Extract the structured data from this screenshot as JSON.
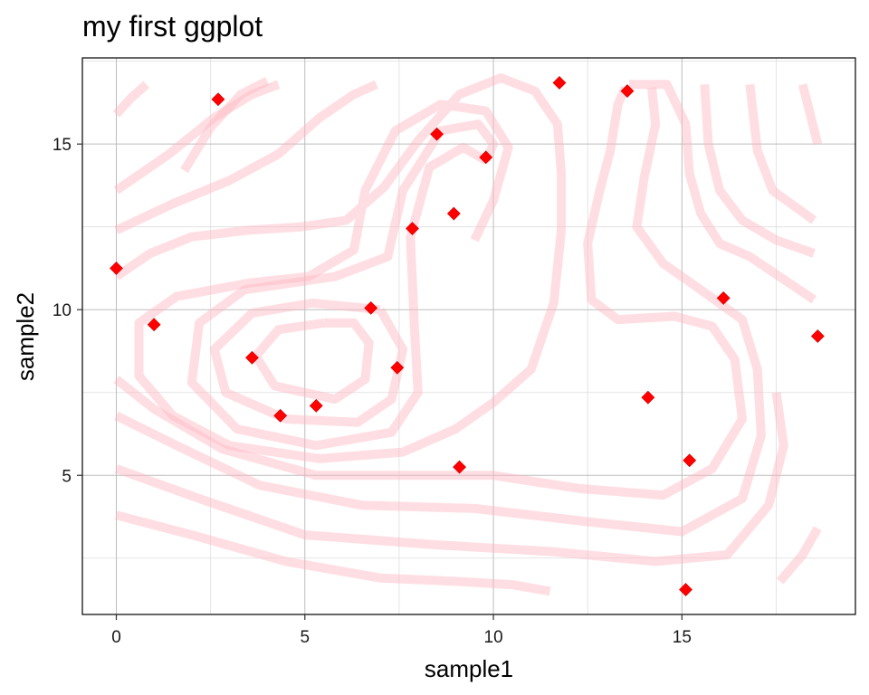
{
  "chart_data": {
    "type": "scatter",
    "title": "my first ggplot",
    "xlabel": "sample1",
    "ylabel": "sample2",
    "xlim": [
      -0.9,
      19.6
    ],
    "ylim": [
      0.8,
      17.6
    ],
    "x_ticks": [
      0,
      5,
      10,
      15
    ],
    "y_ticks": [
      5,
      10,
      15
    ],
    "x_minor": [
      2.5,
      7.5,
      12.5,
      17.5
    ],
    "y_minor": [
      2.5,
      7.5,
      12.5,
      17.5
    ],
    "grid": true,
    "point_shape": "diamond",
    "point_color": "#ff0000",
    "contour_color": "#ffb6c1",
    "points": [
      {
        "x": 0.0,
        "y": 11.25
      },
      {
        "x": 1.0,
        "y": 9.55
      },
      {
        "x": 2.7,
        "y": 16.35
      },
      {
        "x": 3.6,
        "y": 8.55
      },
      {
        "x": 4.35,
        "y": 6.8
      },
      {
        "x": 5.3,
        "y": 7.1
      },
      {
        "x": 6.75,
        "y": 10.05
      },
      {
        "x": 7.45,
        "y": 8.25
      },
      {
        "x": 7.85,
        "y": 12.45
      },
      {
        "x": 8.5,
        "y": 15.3
      },
      {
        "x": 8.95,
        "y": 12.9
      },
      {
        "x": 9.1,
        "y": 5.25
      },
      {
        "x": 9.8,
        "y": 14.6
      },
      {
        "x": 11.75,
        "y": 16.85
      },
      {
        "x": 13.55,
        "y": 16.6
      },
      {
        "x": 14.1,
        "y": 7.35
      },
      {
        "x": 15.1,
        "y": 1.55
      },
      {
        "x": 15.2,
        "y": 5.45
      },
      {
        "x": 16.1,
        "y": 10.35
      },
      {
        "x": 18.6,
        "y": 9.2
      }
    ],
    "contours": [
      [
        [
          5.5,
          9.6
        ],
        [
          4.3,
          9.4
        ],
        [
          3.7,
          8.6
        ],
        [
          4.2,
          7.7
        ],
        [
          5.8,
          7.3
        ],
        [
          6.6,
          7.9
        ],
        [
          6.7,
          9.0
        ],
        [
          6.3,
          9.6
        ],
        [
          5.5,
          9.6
        ]
      ],
      [
        [
          7.0,
          10.0
        ],
        [
          5.2,
          10.2
        ],
        [
          3.6,
          9.9
        ],
        [
          2.6,
          8.8
        ],
        [
          2.9,
          7.5
        ],
        [
          4.5,
          6.7
        ],
        [
          6.4,
          6.6
        ],
        [
          7.3,
          7.3
        ],
        [
          7.6,
          8.8
        ],
        [
          7.0,
          10.0
        ]
      ],
      [
        [
          9.8,
          14.5
        ],
        [
          9.2,
          14.9
        ],
        [
          8.3,
          14.3
        ],
        [
          7.8,
          12.2
        ],
        [
          7.9,
          9.6
        ],
        [
          8.0,
          7.5
        ],
        [
          7.3,
          6.3
        ],
        [
          5.3,
          5.9
        ],
        [
          3.2,
          6.4
        ],
        [
          2.0,
          7.8
        ],
        [
          2.2,
          9.6
        ],
        [
          3.4,
          10.6
        ],
        [
          5.8,
          11.0
        ],
        [
          7.2,
          11.6
        ],
        [
          7.6,
          13.6
        ],
        [
          8.6,
          15.4
        ],
        [
          9.6,
          15.6
        ],
        [
          10.0,
          15.0
        ],
        [
          9.8,
          14.5
        ]
      ],
      [
        [
          0.0,
          7.9
        ],
        [
          1.0,
          7.0
        ],
        [
          2.8,
          5.8
        ],
        [
          5.3,
          5.0
        ],
        [
          7.5,
          5.0
        ],
        [
          10.0,
          5.0
        ],
        [
          12.3,
          4.6
        ],
        [
          14.5,
          4.4
        ],
        [
          15.8,
          5.2
        ],
        [
          16.6,
          6.7
        ],
        [
          16.4,
          8.5
        ],
        [
          15.8,
          9.5
        ],
        [
          14.8,
          9.8
        ],
        [
          13.3,
          9.7
        ],
        [
          12.6,
          10.3
        ],
        [
          12.5,
          12.0
        ],
        [
          12.8,
          13.5
        ],
        [
          13.1,
          14.8
        ],
        [
          13.3,
          16.2
        ],
        [
          13.5,
          16.7
        ]
      ],
      [
        [
          0.0,
          6.8
        ],
        [
          1.6,
          5.9
        ],
        [
          3.8,
          4.7
        ],
        [
          6.5,
          4.1
        ],
        [
          9.5,
          4.0
        ],
        [
          12.5,
          3.6
        ],
        [
          15.0,
          3.3
        ],
        [
          16.6,
          4.3
        ],
        [
          17.1,
          6.2
        ],
        [
          17.0,
          8.2
        ],
        [
          16.6,
          9.7
        ],
        [
          15.5,
          10.6
        ],
        [
          14.5,
          11.4
        ],
        [
          13.8,
          12.5
        ],
        [
          14.0,
          14.0
        ],
        [
          14.3,
          15.6
        ],
        [
          14.2,
          16.7
        ]
      ],
      [
        [
          0.0,
          5.2
        ],
        [
          2.2,
          4.3
        ],
        [
          5.0,
          3.2
        ],
        [
          8.5,
          2.9
        ],
        [
          11.5,
          2.7
        ],
        [
          14.3,
          2.4
        ],
        [
          16.2,
          2.6
        ],
        [
          17.3,
          4.1
        ],
        [
          17.7,
          5.9
        ],
        [
          17.5,
          7.5
        ]
      ],
      [
        [
          0.0,
          3.8
        ],
        [
          2.0,
          3.2
        ],
        [
          4.5,
          2.4
        ],
        [
          7.0,
          1.9
        ],
        [
          9.0,
          1.8
        ],
        [
          10.5,
          1.7
        ],
        [
          11.5,
          1.5
        ]
      ],
      [
        [
          0.0,
          11.0
        ],
        [
          0.9,
          11.7
        ],
        [
          2.0,
          12.2
        ],
        [
          3.5,
          12.4
        ],
        [
          4.9,
          12.5
        ],
        [
          6.1,
          12.7
        ],
        [
          7.1,
          13.7
        ],
        [
          8.0,
          15.1
        ],
        [
          9.1,
          16.5
        ],
        [
          10.2,
          17.0
        ],
        [
          11.1,
          16.6
        ],
        [
          11.7,
          15.6
        ],
        [
          11.8,
          14.1
        ],
        [
          11.8,
          12.4
        ],
        [
          11.6,
          10.2
        ],
        [
          11.0,
          8.2
        ],
        [
          10.0,
          7.2
        ],
        [
          9.0,
          6.4
        ],
        [
          7.6,
          5.7
        ],
        [
          5.4,
          5.5
        ],
        [
          3.0,
          5.9
        ],
        [
          1.5,
          6.8
        ],
        [
          0.6,
          8.0
        ],
        [
          0.6,
          9.6
        ],
        [
          1.6,
          10.4
        ],
        [
          3.5,
          10.8
        ],
        [
          5.1,
          11.0
        ],
        [
          6.3,
          11.8
        ],
        [
          6.6,
          13.6
        ],
        [
          7.4,
          15.4
        ],
        [
          8.6,
          16.2
        ],
        [
          9.8,
          16.0
        ],
        [
          10.4,
          14.9
        ],
        [
          10.0,
          13.3
        ],
        [
          9.5,
          12.1
        ]
      ],
      [
        [
          0.0,
          12.4
        ],
        [
          1.5,
          13.2
        ],
        [
          3.0,
          13.9
        ],
        [
          4.3,
          14.7
        ],
        [
          5.4,
          15.8
        ],
        [
          6.3,
          16.5
        ],
        [
          6.9,
          16.8
        ]
      ],
      [
        [
          0.0,
          13.6
        ],
        [
          1.4,
          14.7
        ],
        [
          2.6,
          15.8
        ],
        [
          3.6,
          16.5
        ],
        [
          4.3,
          16.8
        ]
      ],
      [
        [
          0.0,
          15.9
        ],
        [
          0.4,
          16.4
        ],
        [
          0.8,
          16.8
        ]
      ],
      [
        [
          1.8,
          14.2
        ],
        [
          2.5,
          15.5
        ],
        [
          3.3,
          16.5
        ],
        [
          4.0,
          16.9
        ]
      ],
      [
        [
          13.6,
          16.8
        ],
        [
          14.6,
          16.8
        ],
        [
          15.1,
          15.6
        ],
        [
          15.2,
          14.1
        ],
        [
          15.5,
          12.9
        ],
        [
          16.0,
          12.0
        ],
        [
          16.8,
          11.6
        ],
        [
          18.5,
          10.3
        ]
      ],
      [
        [
          15.6,
          16.8
        ],
        [
          15.7,
          15.0
        ],
        [
          16.0,
          13.6
        ],
        [
          16.6,
          12.7
        ],
        [
          17.5,
          12.1
        ],
        [
          18.5,
          11.7
        ]
      ],
      [
        [
          16.8,
          16.8
        ],
        [
          17.0,
          14.8
        ],
        [
          17.4,
          13.6
        ],
        [
          18.5,
          12.7
        ]
      ],
      [
        [
          18.2,
          16.8
        ],
        [
          18.4,
          15.9
        ],
        [
          18.6,
          15.0
        ]
      ],
      [
        [
          17.6,
          1.8
        ],
        [
          18.2,
          2.6
        ],
        [
          18.6,
          3.4
        ]
      ]
    ]
  }
}
